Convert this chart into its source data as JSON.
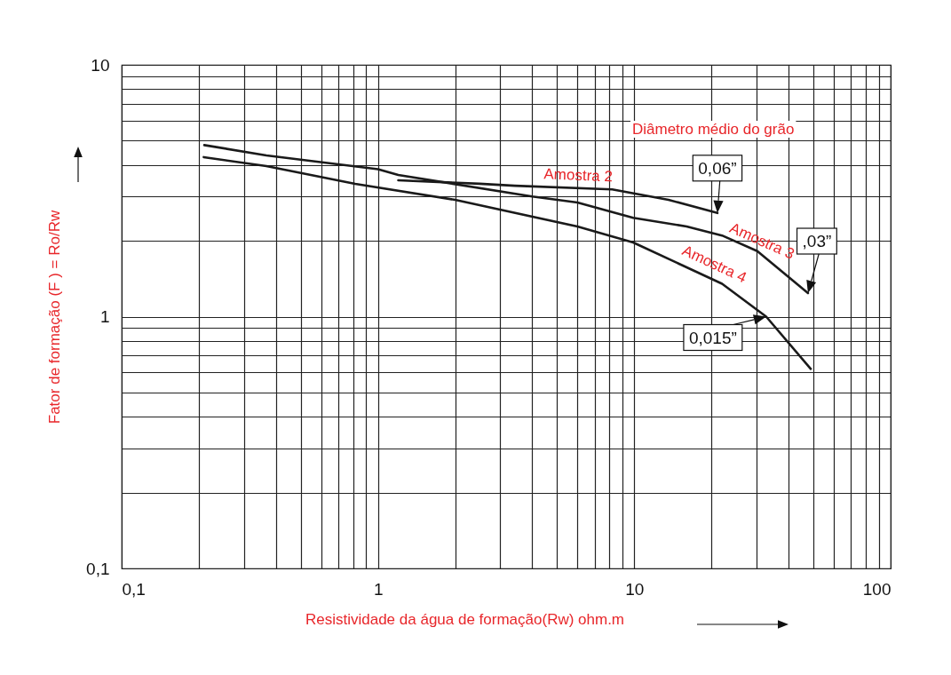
{
  "chart_data": {
    "type": "line",
    "xlabel": "Resistividade da água de formação(Rw) ohm.m",
    "ylabel": "Fator de formação (F ) = Ro/Rw",
    "log": "xy",
    "grid": true,
    "marker": "none",
    "line_style": "solid",
    "xlim": [
      0.1,
      100
    ],
    "xticks": [
      {
        "value": 0.1,
        "label": "0,1"
      },
      1,
      10,
      100
    ],
    "ylim": [
      0.1,
      10
    ],
    "yticks": [
      {
        "value": 0.1,
        "label": "0,1"
      },
      1,
      10
    ],
    "series": [
      {
        "name": "Amostra 2",
        "color": "#1a1a1a",
        "x": [
          1.2,
          2.49,
          3.42,
          8.2,
          13.6,
          21.1
        ],
        "values": [
          3.48,
          3.37,
          3.31,
          3.2,
          2.91,
          2.58
        ]
      },
      {
        "name": "Amostra 3",
        "color": "#1a1a1a",
        "x": [
          0.21,
          0.367,
          1,
          1.2,
          4.0,
          6.0,
          9.9,
          16,
          22,
          30.2,
          47.6
        ],
        "values": [
          4.8,
          4.37,
          3.85,
          3.65,
          3.0,
          2.84,
          2.47,
          2.28,
          2.1,
          1.82,
          1.24
        ]
      },
      {
        "name": "Amostra 4",
        "color": "#1a1a1a",
        "x": [
          0.209,
          0.367,
          0.815,
          2.0,
          6.0,
          9.9,
          22,
          32.7,
          48.8
        ],
        "values": [
          4.3,
          3.96,
          3.37,
          2.91,
          2.28,
          1.97,
          1.35,
          1.0,
          0.62
        ]
      }
    ],
    "annotations": [
      "Diâmetro médio do grão",
      {
        "text": "0,06”",
        "x": 21.1,
        "y": 2.58
      },
      {
        "text": ",03”",
        "x": 47.6,
        "y": 1.24
      },
      {
        "text": "0,015”",
        "x": 32.7,
        "y": 1.0
      }
    ]
  }
}
